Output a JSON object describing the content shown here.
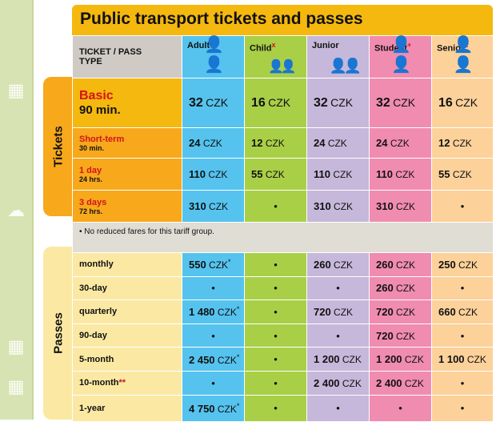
{
  "title": "Public transport tickets and passes",
  "side_tabs": {
    "tickets": "Tickets",
    "passes": "Passes"
  },
  "header": {
    "type_label_1": "TICKET / PASS",
    "type_label_2": "TYPE",
    "categories": [
      {
        "name": "Adult",
        "mark": ""
      },
      {
        "name": "Child",
        "mark": "x"
      },
      {
        "name": "Junior",
        "mark": ""
      },
      {
        "name": "Student",
        "mark": "+"
      },
      {
        "name": "Senior",
        "mark": "x"
      }
    ]
  },
  "colors": {
    "adult": "#55c3ee",
    "child": "#a9cf47",
    "junior": "#c6b8da",
    "student": "#f08cb0",
    "senior": "#fcd19a",
    "tickets_label": "#f7a81b",
    "passes_label": "#fbe9a3",
    "title": "#f5b80e"
  },
  "unit": "CZK",
  "dot": "•",
  "tickets": [
    {
      "label": "Basic",
      "sub": "90 min.",
      "values": [
        "32",
        "16",
        "32",
        "32",
        "16"
      ]
    },
    {
      "label": "Short-term",
      "sub": "30 min.",
      "values": [
        "24",
        "12",
        "24",
        "24",
        "12"
      ]
    },
    {
      "label": "1 day",
      "sub": "24 hrs.",
      "values": [
        "110",
        "55",
        "110",
        "110",
        "55"
      ]
    },
    {
      "label": "3 days",
      "sub": "72 hrs.",
      "values": [
        "310",
        "",
        "310",
        "310",
        ""
      ]
    }
  ],
  "note": "• No reduced fares for this tariff group.",
  "passes": [
    {
      "label": "monthly",
      "mark": "",
      "values": [
        "550",
        "",
        "260",
        "260",
        "250"
      ],
      "adult_star": "*"
    },
    {
      "label": "30-day",
      "mark": "",
      "values": [
        "",
        "",
        "",
        "260",
        ""
      ],
      "adult_star": ""
    },
    {
      "label": "quarterly",
      "mark": "",
      "values": [
        "1 480",
        "",
        "720",
        "720",
        "660"
      ],
      "adult_star": "*"
    },
    {
      "label": "90-day",
      "mark": "",
      "values": [
        "",
        "",
        "",
        "720",
        ""
      ],
      "adult_star": ""
    },
    {
      "label": "5-month",
      "mark": "",
      "values": [
        "2 450",
        "",
        "1 200",
        "1 200",
        "1 100"
      ],
      "adult_star": "*"
    },
    {
      "label": "10-month",
      "mark": "**",
      "values": [
        "",
        "",
        "2 400",
        "2 400",
        ""
      ],
      "adult_star": ""
    },
    {
      "label": "1-year",
      "mark": "",
      "values": [
        "4 750",
        "",
        "",
        "",
        ""
      ],
      "adult_star": "*"
    }
  ]
}
